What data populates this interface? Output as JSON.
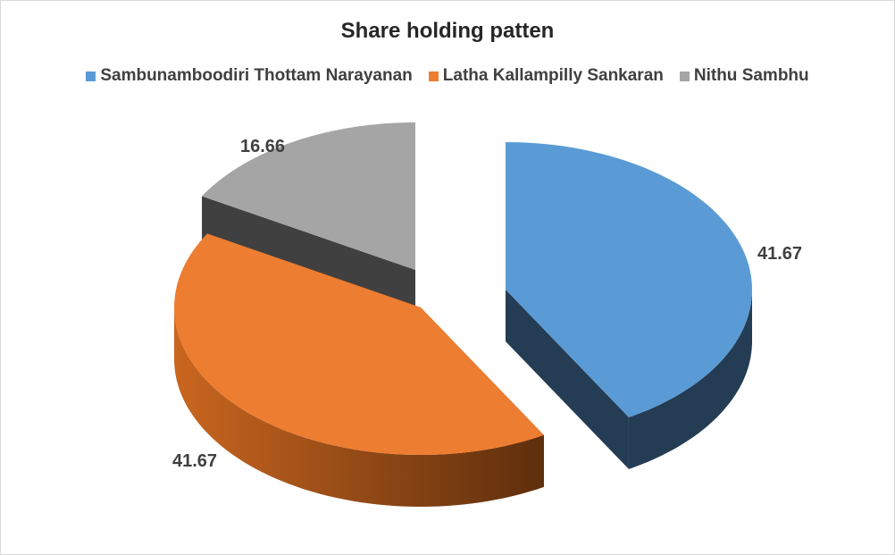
{
  "chart_data": {
    "type": "pie",
    "title": "Share holding patten",
    "legend_position": "top",
    "labels": [
      "Sambunamboodiri Thottam Narayanan",
      "Latha Kallampilly Sankaran",
      "Nithu Sambhu"
    ],
    "values": [
      41.67,
      41.67,
      16.66
    ],
    "value_labels": [
      "41.67",
      "41.67",
      "16.66"
    ],
    "colors": [
      "#5B9BD5",
      "#ED7D31",
      "#A5A5A5"
    ],
    "style": "3d-exploded"
  }
}
